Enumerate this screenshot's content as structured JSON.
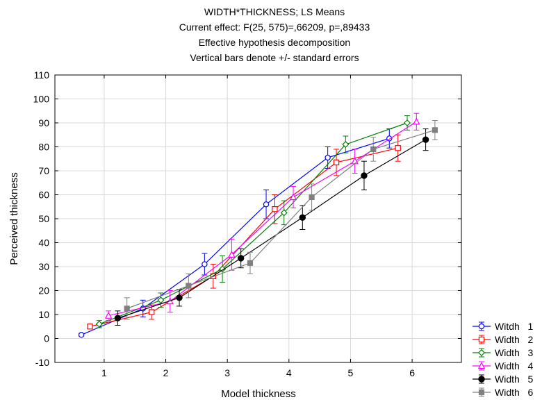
{
  "chart_data": {
    "type": "line",
    "title_lines": [
      "WIDTH*THICKNESS; LS Means",
      "Current effect: F(25, 575)=,66209, p=,89433",
      "Effective hypothesis decomposition",
      "Vertical bars denote +/- standard errors"
    ],
    "xlabel": "Model thickness",
    "ylabel": "Perceived thickness",
    "xlim": [
      0.2,
      6.8
    ],
    "ylim": [
      -10,
      110
    ],
    "xticks": [
      1,
      2,
      3,
      4,
      5,
      6
    ],
    "yticks": [
      -10,
      0,
      10,
      20,
      30,
      40,
      50,
      60,
      70,
      80,
      90,
      100,
      110
    ],
    "grid": true,
    "legend_position": "bottom-right",
    "series": [
      {
        "name": "Witdh   1",
        "color": "#0000ff",
        "marker": "circle-open",
        "x": [
          0.63,
          1.63,
          2.63,
          3.63,
          4.63,
          5.63
        ],
        "y": [
          1.5,
          12.5,
          31,
          56,
          75.5,
          83.5
        ],
        "err": [
          0.5,
          3.5,
          4.5,
          6,
          4.5,
          4
        ]
      },
      {
        "name": "Width   2",
        "color": "#ff0000",
        "marker": "square-open",
        "x": [
          0.77,
          1.77,
          2.77,
          3.77,
          4.77,
          5.77
        ],
        "y": [
          5,
          11,
          26,
          54,
          73.5,
          79.5
        ],
        "err": [
          0.8,
          3,
          5,
          6,
          5.5,
          5.5
        ]
      },
      {
        "name": "Width   3",
        "color": "#008000",
        "marker": "diamond-open",
        "x": [
          0.92,
          1.92,
          2.92,
          3.92,
          4.92,
          5.92
        ],
        "y": [
          6,
          16,
          29,
          52.5,
          81,
          90
        ],
        "err": [
          1.5,
          3,
          5.5,
          5,
          3.5,
          3
        ]
      },
      {
        "name": "Width   4",
        "color": "#ff00ff",
        "marker": "triangle-open",
        "x": [
          1.07,
          2.07,
          3.07,
          4.07,
          5.07,
          6.07
        ],
        "y": [
          9.5,
          15.5,
          35,
          59,
          74,
          90.5
        ],
        "err": [
          2,
          4.5,
          6.5,
          4.5,
          5,
          3.5
        ]
      },
      {
        "name": "Width   5",
        "color": "#000000",
        "marker": "circle-filled",
        "x": [
          1.22,
          2.22,
          3.22,
          4.22,
          5.22,
          6.22
        ],
        "y": [
          8.5,
          17,
          33.5,
          50.5,
          68,
          83
        ],
        "err": [
          3,
          3.5,
          4,
          5,
          6,
          4.5
        ]
      },
      {
        "name": "Width   6",
        "color": "#808080",
        "marker": "square-filled",
        "x": [
          1.37,
          2.37,
          3.37,
          4.37,
          5.37,
          6.37
        ],
        "y": [
          12.5,
          22,
          31.5,
          59,
          79,
          87
        ],
        "err": [
          4.5,
          5,
          4.5,
          5.5,
          5,
          4
        ]
      }
    ]
  }
}
